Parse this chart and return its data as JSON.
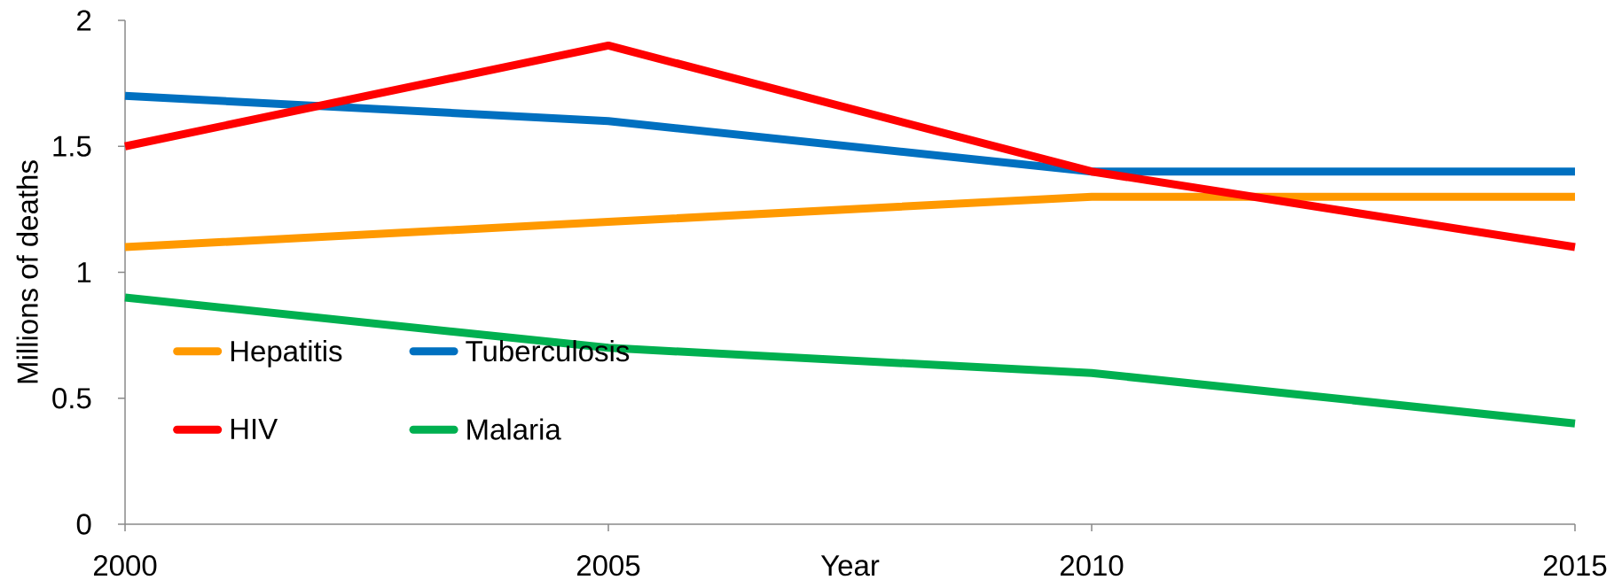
{
  "chart_data": {
    "type": "line",
    "xlabel": "Year",
    "ylabel": "Millions of deaths",
    "x": [
      2000,
      2005,
      2010,
      2015
    ],
    "xlim": [
      2000,
      2015
    ],
    "xticks": [
      2000,
      2005,
      2010,
      2015
    ],
    "ylim": [
      0,
      2
    ],
    "yticks": [
      0,
      0.5,
      1,
      1.5,
      2
    ],
    "legend": "bottom left",
    "marker": "none",
    "line_style": "solid",
    "series": [
      {
        "name": "Hepatitis",
        "color": "#ff9900",
        "values": [
          1.1,
          1.2,
          1.3,
          1.3
        ]
      },
      {
        "name": "Tuberculosis",
        "color": "#0070c0",
        "values": [
          1.7,
          1.6,
          1.4,
          1.4
        ]
      },
      {
        "name": "HIV",
        "color": "#ff0000",
        "values": [
          1.5,
          1.9,
          1.4,
          1.1
        ]
      },
      {
        "name": "Malaria",
        "color": "#00b050",
        "values": [
          0.9,
          0.7,
          0.6,
          0.4
        ]
      }
    ]
  }
}
